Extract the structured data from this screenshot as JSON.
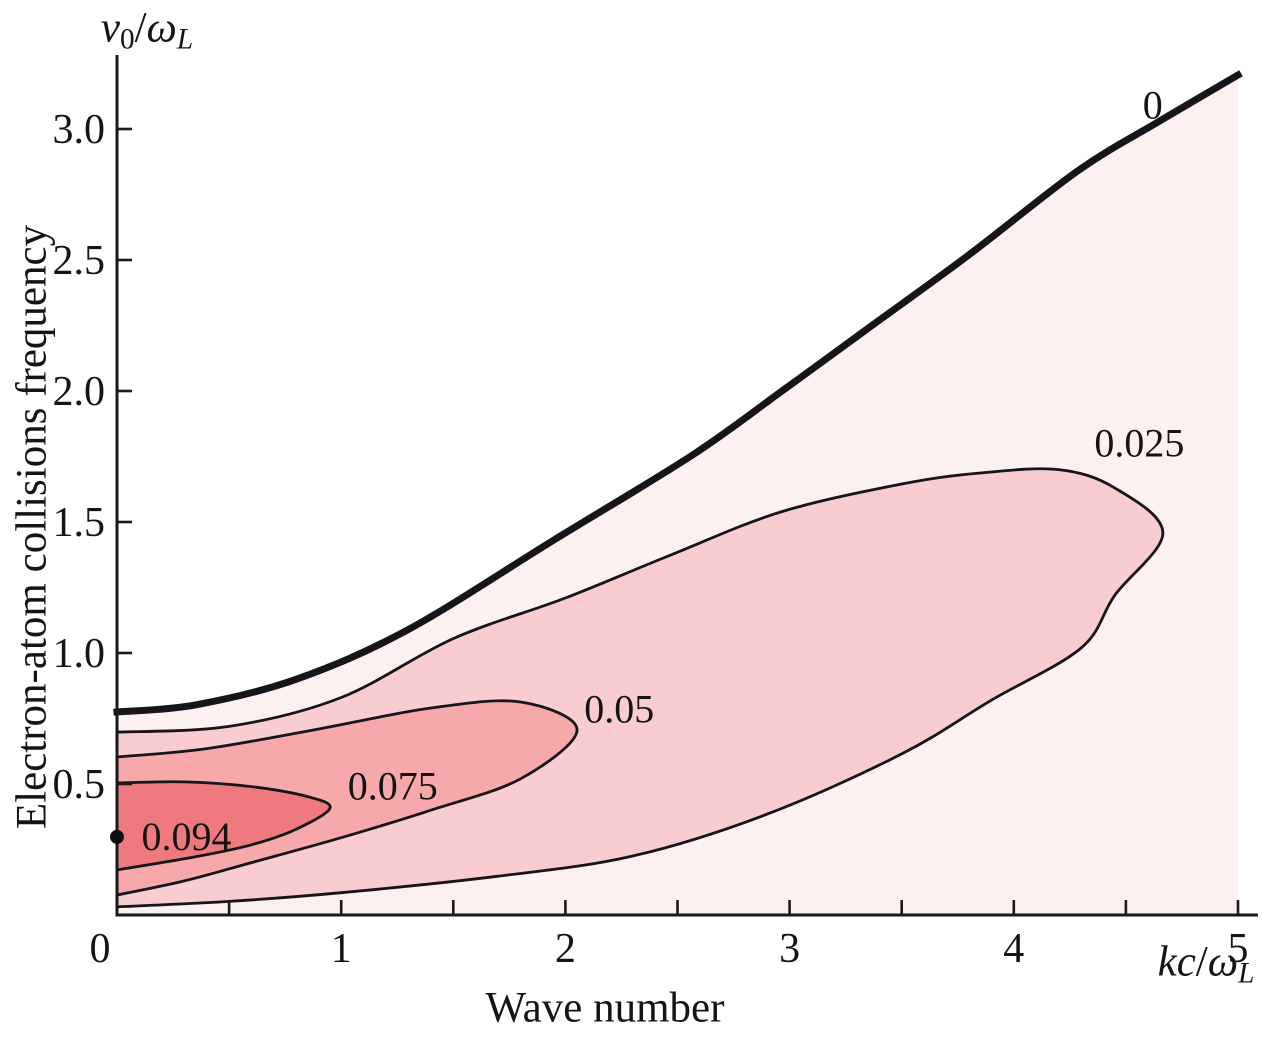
{
  "figure": {
    "background": "#ffffff",
    "axis_color": "#1a1a1a",
    "text_color": "#141414"
  },
  "titles": {
    "x_axis_title": "Wave number",
    "y_axis_title": "Electron-atom collisions frequency",
    "y_axis_symbol": {
      "nu": "ν",
      "sub0": "0",
      "slash": "/",
      "omega": "ω",
      "subL": "L"
    },
    "x_axis_symbol": {
      "kc": "kc",
      "slash": "/",
      "omega": "ω",
      "subL": "L"
    }
  },
  "chart_data": {
    "type": "contour",
    "title": "",
    "xlabel": "Wave number",
    "ylabel": "Electron-atom collisions frequency",
    "x_unit_symbol": "kc/ω_L",
    "y_unit_symbol": "ν_0/ω_L",
    "xlim": [
      0,
      5
    ],
    "ylim": [
      0,
      3.21
    ],
    "grid": false,
    "legend": "none",
    "x_major_ticks": [
      0,
      1,
      2,
      3,
      4,
      5
    ],
    "x_major_tick_labels": [
      "0",
      "1",
      "2",
      "3",
      "4",
      "5"
    ],
    "x_minor_ticks": [
      0.5,
      1.5,
      2.5,
      3.5,
      4.5
    ],
    "y_major_ticks": [
      0.5,
      1.0,
      1.5,
      2.0,
      2.5,
      3.0
    ],
    "y_major_tick_labels": [
      "0.5",
      "1.0",
      "1.5",
      "2.0",
      "2.5",
      "3.0"
    ],
    "contour_line_color": "#15151a",
    "contours": [
      {
        "level": 0,
        "label": "0",
        "label_pos": [
          4.62,
          3.09
        ],
        "stroke_width": 7,
        "fill_inside": "#fdf0f0",
        "open_to_bottom": true,
        "points": [
          [
            0,
            0.775
          ],
          [
            0.35,
            0.802
          ],
          [
            0.8,
            0.9
          ],
          [
            1.3,
            1.09
          ],
          [
            1.95,
            1.432
          ],
          [
            2.56,
            1.752
          ],
          [
            2.96,
            1.996
          ],
          [
            3.34,
            2.233
          ],
          [
            3.8,
            2.52
          ],
          [
            4.29,
            2.843
          ],
          [
            4.65,
            3.03
          ],
          [
            5,
            3.206
          ]
        ]
      },
      {
        "level": 0.025,
        "label": "0.025",
        "label_pos": [
          4.56,
          1.8
        ],
        "stroke_width": 2.8,
        "fill_inside": "#f9cdd0",
        "open_to_bottom": false,
        "points": [
          [
            0,
            0.698
          ],
          [
            0.5,
            0.72
          ],
          [
            1,
            0.83
          ],
          [
            1.5,
            1.055
          ],
          [
            2,
            1.21
          ],
          [
            2.47,
            1.374
          ],
          [
            2.96,
            1.538
          ],
          [
            3.5,
            1.645
          ],
          [
            3.85,
            1.687
          ],
          [
            4.2,
            1.7
          ],
          [
            4.45,
            1.63
          ],
          [
            4.665,
            1.458
          ],
          [
            4.45,
            1.22
          ],
          [
            4.3,
            1.019
          ],
          [
            3.9,
            0.82
          ],
          [
            3.5,
            0.615
          ],
          [
            2.9,
            0.385
          ],
          [
            2.3,
            0.225
          ],
          [
            1.7,
            0.148
          ],
          [
            1,
            0.085
          ],
          [
            0.5,
            0.052
          ],
          [
            0,
            0.031
          ]
        ]
      },
      {
        "level": 0.05,
        "label": "0.05",
        "label_pos": [
          2.24,
          0.785
        ],
        "stroke_width": 2.8,
        "fill_inside": "#f6a8ab",
        "open_to_bottom": false,
        "points": [
          [
            0,
            0.603
          ],
          [
            0.4,
            0.635
          ],
          [
            0.9,
            0.71
          ],
          [
            1.4,
            0.79
          ],
          [
            1.8,
            0.813
          ],
          [
            2.052,
            0.706
          ],
          [
            1.8,
            0.52
          ],
          [
            1.4,
            0.4
          ],
          [
            1,
            0.295
          ],
          [
            0.6,
            0.2
          ],
          [
            0.3,
            0.13
          ],
          [
            0,
            0.076
          ]
        ]
      },
      {
        "level": 0.075,
        "label": "0.075",
        "label_pos": [
          1.23,
          0.49
        ],
        "stroke_width": 2.8,
        "fill_inside": "#ee7a80",
        "open_to_bottom": false,
        "points": [
          [
            0,
            0.504
          ],
          [
            0.3,
            0.508
          ],
          [
            0.6,
            0.49
          ],
          [
            0.85,
            0.452
          ],
          [
            0.95,
            0.408
          ],
          [
            0.8,
            0.328
          ],
          [
            0.6,
            0.268
          ],
          [
            0.35,
            0.222
          ],
          [
            0,
            0.172
          ]
        ]
      }
    ],
    "max_point": {
      "x": 0,
      "y": 0.298,
      "label": "0.094",
      "label_pos": [
        0.31,
        0.298
      ],
      "marker": "dot"
    }
  }
}
